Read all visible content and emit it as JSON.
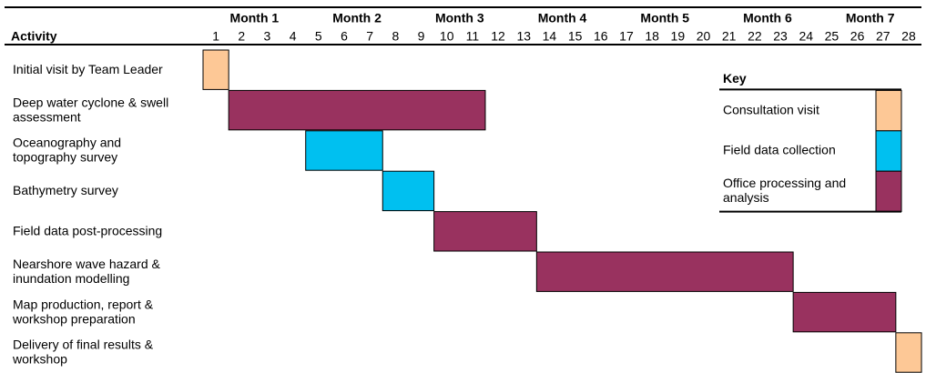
{
  "chart_data": {
    "type": "gantt",
    "axis_label": "Activity",
    "months": [
      "Month 1",
      "Month 2",
      "Month 3",
      "Month 4",
      "Month 5",
      "Month 6",
      "Month 7"
    ],
    "xticks": [
      1,
      2,
      3,
      4,
      5,
      6,
      7,
      8,
      9,
      10,
      11,
      12,
      13,
      14,
      15,
      16,
      17,
      18,
      19,
      20,
      21,
      22,
      23,
      24,
      25,
      26,
      27,
      28
    ],
    "xlim": [
      1,
      28
    ],
    "tasks": [
      {
        "name": [
          "Initial visit by Team Leader"
        ],
        "start": 1,
        "end": 1,
        "color": "#fdc896"
      },
      {
        "name": [
          "Deep water cyclone & swell",
          "assessment"
        ],
        "start": 2,
        "end": 11,
        "color": "#99325f"
      },
      {
        "name": [
          "Oceanography and",
          "topography survey"
        ],
        "start": 5,
        "end": 7,
        "color": "#00c0f0"
      },
      {
        "name": [
          "Bathymetry survey"
        ],
        "start": 8,
        "end": 9,
        "color": "#00c0f0"
      },
      {
        "name": [
          "Field data post-processing"
        ],
        "start": 10,
        "end": 13,
        "color": "#99325f"
      },
      {
        "name": [
          "Nearshore wave hazard &",
          "inundation modelling"
        ],
        "start": 14,
        "end": 23,
        "color": "#99325f"
      },
      {
        "name": [
          "Map production, report &",
          "workshop preparation"
        ],
        "start": 24,
        "end": 27,
        "color": "#99325f"
      },
      {
        "name": [
          "Delivery of final results &",
          "workshop"
        ],
        "start": 28,
        "end": 28,
        "color": "#fdc896"
      }
    ],
    "legend": {
      "title": "Key",
      "entries": [
        {
          "name": [
            "Consultation visit"
          ],
          "color": "#fdc896"
        },
        {
          "name": [
            "Field data collection"
          ],
          "color": "#00c0f0"
        },
        {
          "name": [
            "Office processing and",
            "analysis"
          ],
          "color": "#99325f"
        }
      ]
    }
  }
}
